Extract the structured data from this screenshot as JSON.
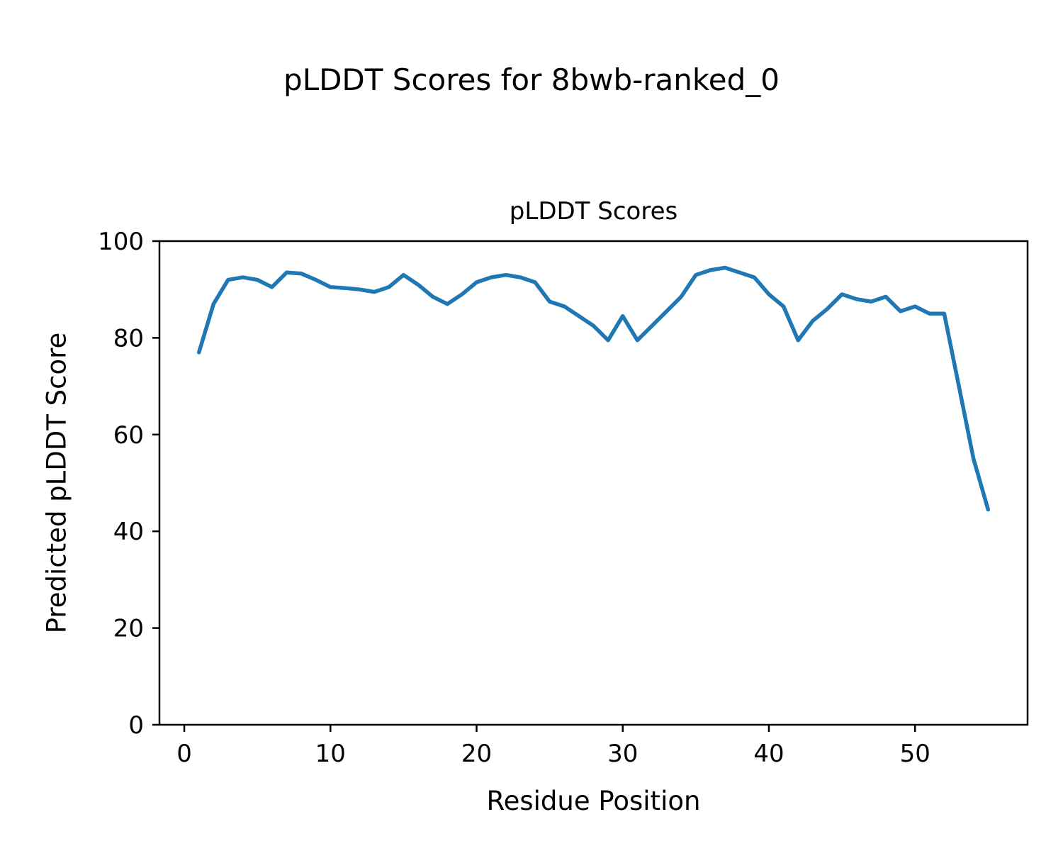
{
  "chart_data": {
    "type": "line",
    "figure_title": "pLDDT Scores for 8bwb-ranked_0",
    "title": "pLDDT Scores",
    "xlabel": "Residue Position",
    "ylabel": "Predicted pLDDT Score",
    "xlim": [
      -1.7,
      57.7
    ],
    "ylim": [
      0,
      100
    ],
    "x_ticks": [
      0,
      10,
      20,
      30,
      40,
      50
    ],
    "y_ticks": [
      0,
      20,
      40,
      60,
      80,
      100
    ],
    "grid": false,
    "legend": "none",
    "line_color": "#1f77b4",
    "series_name": "pLDDT",
    "x": [
      1,
      2,
      3,
      4,
      5,
      6,
      7,
      8,
      9,
      10,
      11,
      12,
      13,
      14,
      15,
      16,
      17,
      18,
      19,
      20,
      21,
      22,
      23,
      24,
      25,
      26,
      27,
      28,
      29,
      30,
      31,
      32,
      33,
      34,
      35,
      36,
      37,
      38,
      39,
      40,
      41,
      42,
      43,
      44,
      45,
      46,
      47,
      48,
      49,
      50,
      51,
      52,
      53,
      54,
      55
    ],
    "y": [
      77,
      87,
      92,
      92.5,
      92,
      90.5,
      93.5,
      93.3,
      92,
      90.5,
      90.3,
      90,
      89.5,
      90.5,
      93,
      91,
      88.5,
      87,
      89,
      91.5,
      92.5,
      93,
      92.5,
      91.5,
      87.5,
      86.5,
      84.5,
      82.5,
      79.5,
      84.5,
      79.5,
      82.5,
      85.5,
      88.5,
      93,
      94,
      94.5,
      93.5,
      92.5,
      89,
      86.5,
      79.5,
      83.5,
      86,
      89,
      88,
      87.5,
      88.5,
      85.5,
      86.5,
      85,
      85,
      70,
      55,
      44.5
    ]
  }
}
